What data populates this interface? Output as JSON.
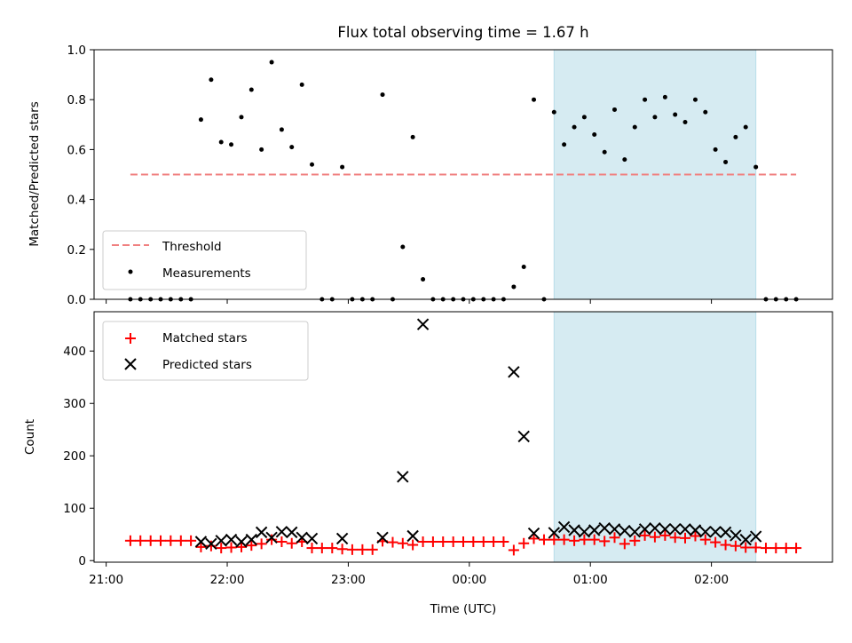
{
  "chart_data": [
    {
      "type": "scatter",
      "panel": "top",
      "title": "Flux total observing time = 1.67 h",
      "xlabel": "",
      "ylabel": "Matched/Predicted stars",
      "ylim": [
        0,
        1.0
      ],
      "xlim_hours": [
        20.9,
        27.0
      ],
      "yticks": [
        0.0,
        0.2,
        0.4,
        0.6,
        0.8,
        1.0
      ],
      "ytick_labels": [
        "0.0",
        "0.2",
        "0.4",
        "0.6",
        "0.8",
        "1.0"
      ],
      "grid": false,
      "legend_position": "lower-left",
      "shaded_region_hours": [
        24.7,
        26.367
      ],
      "threshold": {
        "name": "Threshold",
        "value": 0.5,
        "x_range_hours": [
          21.2,
          26.7
        ],
        "color": "#f08080"
      },
      "series": [
        {
          "name": "Measurements",
          "color": "#000000",
          "x_hours": [
            21.2,
            21.283,
            21.367,
            21.45,
            21.533,
            21.617,
            21.7,
            21.783,
            21.867,
            21.95,
            22.033,
            22.117,
            22.2,
            22.283,
            22.367,
            22.45,
            22.533,
            22.617,
            22.7,
            22.783,
            22.867,
            22.95,
            23.033,
            23.117,
            23.2,
            23.283,
            23.367,
            23.45,
            23.533,
            23.617,
            23.7,
            23.783,
            23.867,
            23.95,
            24.033,
            24.117,
            24.2,
            24.283,
            24.367,
            24.45,
            24.533,
            24.617,
            24.7,
            24.783,
            24.867,
            24.95,
            25.033,
            25.117,
            25.2,
            25.283,
            25.367,
            25.45,
            25.533,
            25.617,
            25.7,
            25.783,
            25.867,
            25.95,
            26.033,
            26.117,
            26.2,
            26.283,
            26.367,
            26.45,
            26.533,
            26.617,
            26.7
          ],
          "y": [
            0,
            0,
            0,
            0,
            0,
            0,
            0,
            0.72,
            0.88,
            0.63,
            0.62,
            0.73,
            0.84,
            0.6,
            0.95,
            0.68,
            0.61,
            0.86,
            0.54,
            0,
            0,
            0.53,
            0,
            0,
            0,
            0.82,
            0,
            0.21,
            0.65,
            0.08,
            0,
            0,
            0,
            0,
            0,
            0,
            0,
            0,
            0.05,
            0.13,
            0.8,
            0,
            0.75,
            0.62,
            0.69,
            0.73,
            0.66,
            0.59,
            0.76,
            0.56,
            0.69,
            0.8,
            0.73,
            0.81,
            0.74,
            0.71,
            0.8,
            0.75,
            0.6,
            0.55,
            0.65,
            0.69,
            0.53,
            0,
            0,
            0,
            0
          ]
        }
      ]
    },
    {
      "type": "scatter",
      "panel": "bottom",
      "title": "",
      "xlabel": "Time (UTC)",
      "ylabel": "Count",
      "ylim": [
        -3,
        475
      ],
      "xlim_hours": [
        20.9,
        27.0
      ],
      "yticks": [
        0,
        100,
        200,
        300,
        400
      ],
      "ytick_labels": [
        "0",
        "100",
        "200",
        "300",
        "400"
      ],
      "xticks_hours": [
        21,
        22,
        23,
        24,
        25,
        26
      ],
      "xtick_labels": [
        "21:00",
        "22:00",
        "23:00",
        "00:00",
        "01:00",
        "02:00"
      ],
      "grid": false,
      "legend_position": "upper-left",
      "shaded_region_hours": [
        24.7,
        26.367
      ],
      "series": [
        {
          "name": "Matched stars",
          "marker": "plus",
          "color": "#ff0000",
          "x_hours": [
            21.2,
            21.283,
            21.367,
            21.45,
            21.533,
            21.617,
            21.7,
            21.783,
            21.867,
            21.95,
            22.033,
            22.117,
            22.2,
            22.283,
            22.367,
            22.45,
            22.533,
            22.617,
            22.7,
            22.783,
            22.867,
            22.95,
            23.033,
            23.117,
            23.2,
            23.283,
            23.367,
            23.45,
            23.533,
            23.617,
            23.7,
            23.783,
            23.867,
            23.95,
            24.033,
            24.117,
            24.2,
            24.283,
            24.367,
            24.45,
            24.533,
            24.617,
            24.7,
            24.783,
            24.867,
            24.95,
            25.033,
            25.117,
            25.2,
            25.283,
            25.367,
            25.45,
            25.533,
            25.617,
            25.7,
            25.783,
            25.867,
            25.95,
            26.033,
            26.117,
            26.2,
            26.283,
            26.367,
            26.45,
            26.533,
            26.617,
            26.7
          ],
          "y": [
            38,
            38,
            38,
            38,
            38,
            38,
            38,
            26,
            28,
            24,
            25,
            26,
            29,
            32,
            40,
            36,
            33,
            36,
            24,
            24,
            24,
            22,
            21,
            21,
            21,
            37,
            35,
            33,
            30,
            36,
            36,
            36,
            36,
            36,
            36,
            36,
            36,
            36,
            20,
            33,
            42,
            40,
            40,
            40,
            38,
            40,
            40,
            37,
            44,
            32,
            38,
            48,
            45,
            48,
            44,
            43,
            47,
            40,
            35,
            30,
            28,
            25,
            25,
            24,
            24,
            24,
            24
          ]
        },
        {
          "name": "Predicted stars",
          "marker": "x",
          "color": "#000000",
          "x_hours": [
            21.783,
            21.867,
            21.95,
            22.033,
            22.117,
            22.2,
            22.283,
            22.367,
            22.45,
            22.533,
            22.617,
            22.7,
            22.95,
            23.283,
            23.45,
            23.533,
            23.617,
            24.367,
            24.45,
            24.533,
            24.7,
            24.783,
            24.867,
            24.95,
            25.033,
            25.117,
            25.2,
            25.283,
            25.367,
            25.45,
            25.533,
            25.617,
            25.7,
            25.783,
            25.867,
            25.95,
            26.033,
            26.117,
            26.2,
            26.283,
            26.367
          ],
          "y": [
            36,
            32,
            38,
            40,
            36,
            40,
            54,
            44,
            55,
            54,
            44,
            42,
            42,
            44,
            160,
            47,
            451,
            360,
            237,
            52,
            53,
            64,
            58,
            55,
            58,
            62,
            60,
            57,
            55,
            60,
            62,
            60,
            60,
            60,
            58,
            55,
            55,
            54,
            48,
            40,
            46
          ]
        }
      ]
    }
  ]
}
